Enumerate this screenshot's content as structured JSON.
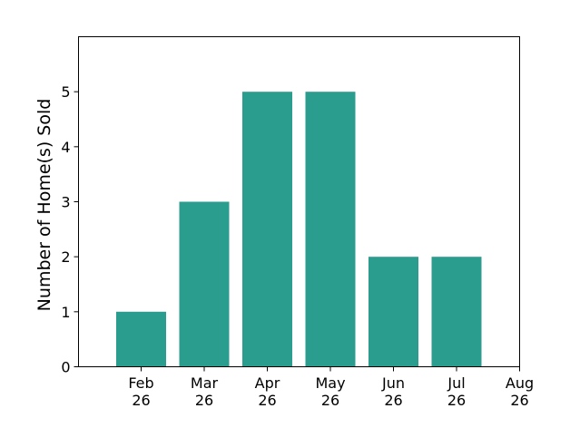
{
  "chart_data": {
    "type": "bar",
    "categories": [
      [
        "Feb",
        "26"
      ],
      [
        "Mar",
        "26"
      ],
      [
        "Apr",
        "26"
      ],
      [
        "May",
        "26"
      ],
      [
        "Jun",
        "26"
      ],
      [
        "Jul",
        "26"
      ]
    ],
    "values": [
      1,
      3,
      5,
      5,
      2,
      2
    ],
    "x_tick_labels": [
      [
        "Feb",
        "26"
      ],
      [
        "Mar",
        "26"
      ],
      [
        "Apr",
        "26"
      ],
      [
        "May",
        "26"
      ],
      [
        "Jun",
        "26"
      ],
      [
        "Jul",
        "26"
      ],
      [
        "Aug",
        "26"
      ]
    ],
    "y_ticks": [
      0,
      1,
      2,
      3,
      4,
      5
    ],
    "ylim": [
      0,
      6
    ],
    "xlabel": "",
    "ylabel": "Number of Home(s) Sold",
    "title": "",
    "grid": false,
    "bar_color": "#2a9d8f"
  }
}
